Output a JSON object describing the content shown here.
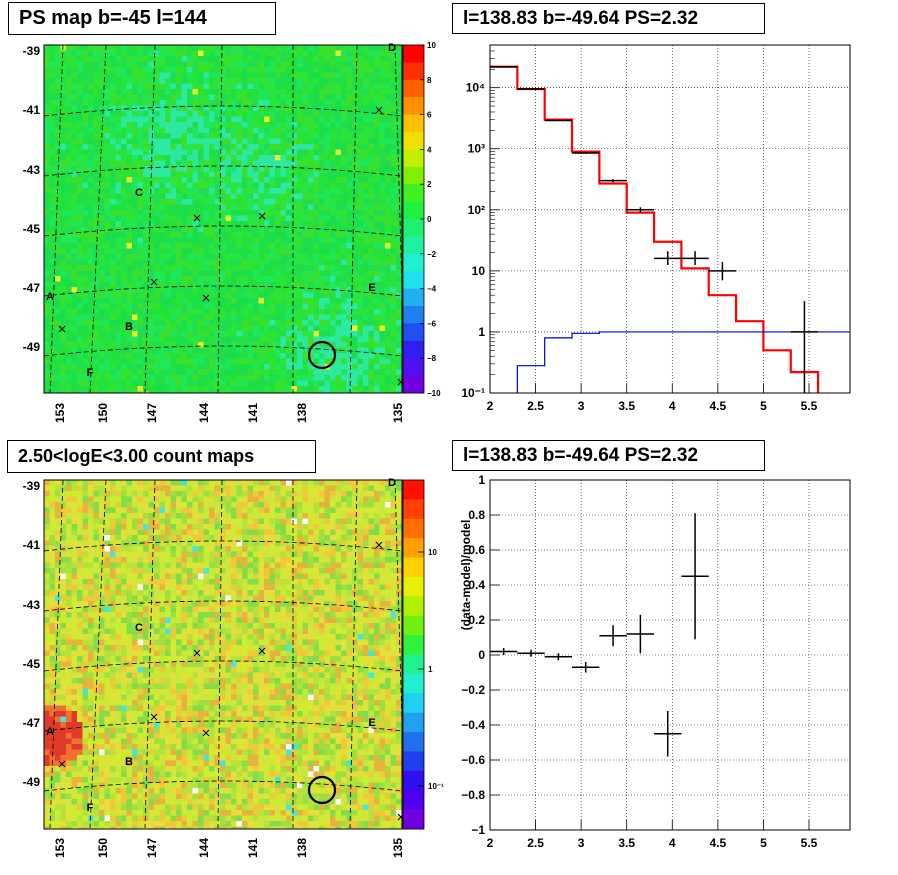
{
  "panels": {
    "ps_map": {
      "title": "PS map b=-45 l=144",
      "lat_labels": [
        "-39",
        "-41",
        "-43",
        "-45",
        "-47",
        "-49"
      ],
      "lon_labels": [
        "153",
        "150",
        "147",
        "144",
        "141",
        "138",
        "135"
      ],
      "colorbar_labels": [
        "10",
        "8",
        "6",
        "4",
        "2",
        "0",
        "−2",
        "−4",
        "−6",
        "−8",
        "−10"
      ],
      "colorbar_values": [
        10,
        8,
        6,
        4,
        2,
        0,
        -2,
        -4,
        -6,
        -8,
        -10
      ],
      "regions": [
        "A",
        "B",
        "C",
        "D",
        "E",
        "F"
      ]
    },
    "spectrum": {
      "title": "l=138.83 b=-49.64 PS=2.32"
    },
    "count_map": {
      "title": "2.50<logE<3.00 count maps",
      "lat_labels": [
        "-39",
        "-41",
        "-43",
        "-45",
        "-47",
        "-49"
      ],
      "lon_labels": [
        "153",
        "150",
        "147",
        "144",
        "141",
        "138",
        "135"
      ],
      "colorbar_labels": [
        "10",
        "1",
        "10⁻¹"
      ],
      "regions": [
        "A",
        "B",
        "C",
        "D",
        "E",
        "F"
      ]
    },
    "residual": {
      "title": "l=138.83 b=-49.64 PS=2.32"
    }
  },
  "colors": {
    "data": "#000000",
    "model_total": "#ff0000",
    "model_source": "#0000cc",
    "ps_map_bg": "#22e23a",
    "count_map_bg": "#c8e83a"
  },
  "chart_data": [
    {
      "type": "heatmap",
      "title": "PS map b=-45 l=144",
      "xlabel": "",
      "ylabel": "",
      "x_tick_labels": [
        "153",
        "150",
        "147",
        "144",
        "141",
        "138",
        "135"
      ],
      "y_tick_labels": [
        "-39",
        "-41",
        "-43",
        "-45",
        "-47",
        "-49"
      ],
      "zlim": [
        -10,
        10
      ],
      "colorbar_ticks": [
        10,
        8,
        6,
        4,
        2,
        0,
        -2,
        -4,
        -6,
        -8,
        -10
      ],
      "region_labels": [
        "A",
        "B",
        "C",
        "D",
        "E",
        "F"
      ],
      "grid": true
    },
    {
      "type": "line",
      "title": "l=138.83 b=-49.64 PS=2.32",
      "xlabel": "",
      "ylabel": "",
      "xlim": [
        2,
        5.95
      ],
      "ylim": [
        0.1,
        50000
      ],
      "yscale": "log",
      "x_tick_labels": [
        "2",
        "2.5",
        "3",
        "3.5",
        "4",
        "4.5",
        "5",
        "5.5"
      ],
      "y_tick_labels": [
        "10⁻¹",
        "1",
        "10",
        "10²",
        "10³",
        "10⁴"
      ],
      "grid": true,
      "series": [
        {
          "style": "step",
          "color": "#ff0000",
          "bin_edges": [
            2.0,
            2.3,
            2.6,
            2.9,
            3.2,
            3.5,
            3.8,
            4.1,
            4.4,
            4.7,
            5.0,
            5.3,
            5.6,
            5.9
          ],
          "values": [
            22000,
            9500,
            3000,
            900,
            270,
            90,
            30,
            11,
            4,
            1.5,
            0.5,
            0.22,
            0.08
          ]
        },
        {
          "style": "step",
          "color": "#0000cc",
          "bin_edges": [
            2.0,
            2.3,
            2.6,
            2.9,
            3.2,
            3.5,
            3.8,
            4.1,
            4.4,
            4.7,
            5.0,
            5.3,
            5.6,
            5.95
          ],
          "values": [
            0.05,
            0.28,
            0.8,
            0.95,
            1.0,
            1.0,
            1.0,
            1.0,
            1.0,
            1.0,
            1.0,
            1.0,
            1.0
          ]
        },
        {
          "style": "errorbar",
          "color": "#000000",
          "x": [
            2.15,
            2.45,
            2.75,
            3.05,
            3.35,
            3.65,
            3.95,
            4.25,
            4.55,
            5.45
          ],
          "xerr": [
            0.15,
            0.15,
            0.15,
            0.15,
            0.15,
            0.15,
            0.15,
            0.15,
            0.15,
            0.15
          ],
          "y": [
            22000,
            9500,
            2900,
            850,
            300,
            100,
            16,
            16,
            10,
            1.0
          ],
          "yerr_low": [
            150,
            100,
            55,
            30,
            17,
            10,
            3.5,
            3.5,
            3,
            0.95
          ],
          "yerr_high": [
            150,
            100,
            55,
            30,
            17,
            10,
            5,
            5,
            4,
            2.2
          ]
        }
      ]
    },
    {
      "type": "heatmap",
      "title": "2.50<logE<3.00 count maps",
      "xlabel": "",
      "ylabel": "",
      "x_tick_labels": [
        "153",
        "150",
        "147",
        "144",
        "141",
        "138",
        "135"
      ],
      "y_tick_labels": [
        "-39",
        "-41",
        "-43",
        "-45",
        "-47",
        "-49"
      ],
      "zscale": "log",
      "colorbar_ticks": [
        "10",
        "1",
        "10⁻¹"
      ],
      "region_labels": [
        "A",
        "B",
        "C",
        "D",
        "E",
        "F"
      ],
      "grid": true
    },
    {
      "type": "scatter",
      "title": "l=138.83 b=-49.64 PS=2.32",
      "xlabel": "",
      "ylabel": "(data-model)/model",
      "xlim": [
        2,
        5.95
      ],
      "ylim": [
        -1,
        1
      ],
      "x_tick_labels": [
        "2",
        "2.5",
        "3",
        "3.5",
        "4",
        "4.5",
        "5",
        "5.5"
      ],
      "y_tick_labels": [
        "−1",
        "−0.8",
        "−0.6",
        "−0.4",
        "−0.2",
        "0",
        "0.2",
        "0.4",
        "0.6",
        "0.8",
        "1"
      ],
      "grid": true,
      "series": [
        {
          "style": "errorbar",
          "color": "#000000",
          "x": [
            2.15,
            2.45,
            2.75,
            3.05,
            3.35,
            3.65,
            3.95,
            4.25
          ],
          "xerr": [
            0.15,
            0.15,
            0.15,
            0.15,
            0.15,
            0.15,
            0.15,
            0.15
          ],
          "y": [
            0.02,
            0.01,
            -0.01,
            -0.07,
            0.11,
            0.12,
            -0.45,
            0.45
          ],
          "yerr": [
            0.02,
            0.02,
            0.02,
            0.03,
            0.06,
            0.11,
            0.13,
            0.36
          ]
        }
      ]
    }
  ]
}
